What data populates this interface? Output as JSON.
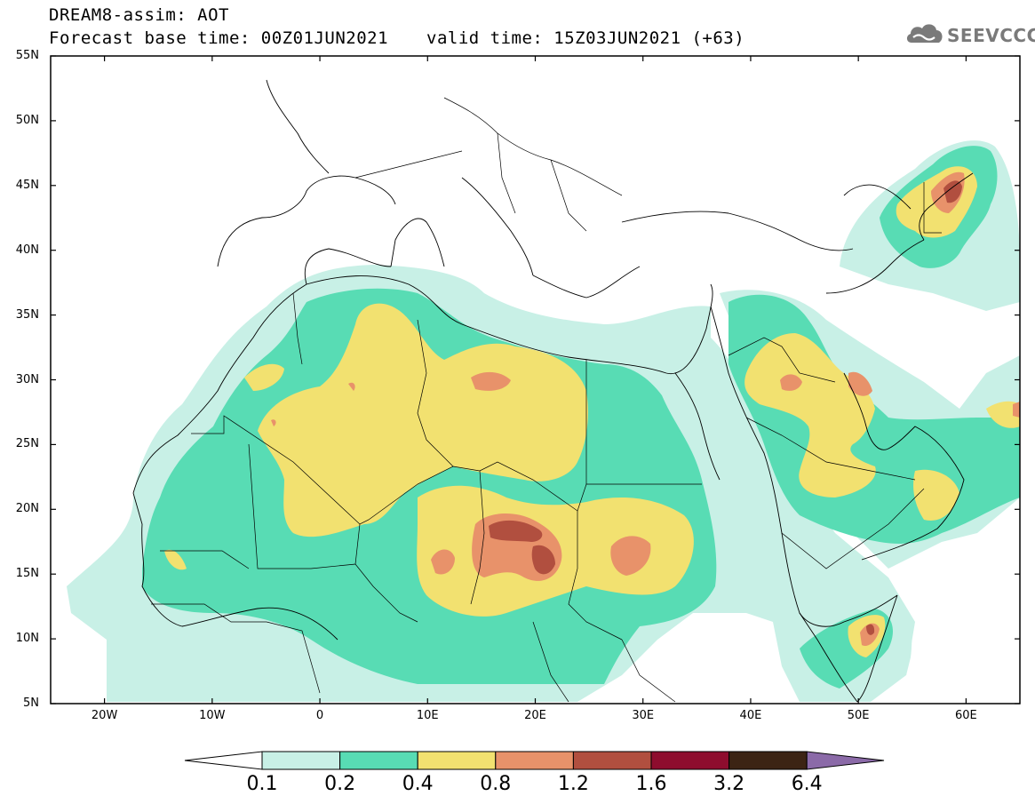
{
  "header": {
    "title": "DREAM8-assim: AOT",
    "base_time": "Forecast base time: 00Z01JUN2021",
    "valid_time": "valid time: 15Z03JUN2021 (+63)",
    "logo_text": "SEEVCCC"
  },
  "map": {
    "lon_range": [
      -25,
      65
    ],
    "lat_range": [
      5,
      55
    ],
    "lat_labels": [
      "55N",
      "50N",
      "45N",
      "40N",
      "35N",
      "30N",
      "25N",
      "20N",
      "15N",
      "10N",
      "5N"
    ],
    "lon_labels": [
      "20W",
      "10W",
      "0",
      "10E",
      "20E",
      "30E",
      "40E",
      "50E",
      "60E"
    ]
  },
  "colorbar": {
    "labels": [
      "0.1",
      "0.2",
      "0.4",
      "0.8",
      "1.2",
      "1.6",
      "3.2",
      "6.4"
    ],
    "colors": [
      "#ffffff",
      "#c8f0e6",
      "#58dcb4",
      "#f2e170",
      "#e8926a",
      "#b14f3f",
      "#8e0d2e",
      "#3c2414",
      "#8b6aa8"
    ]
  }
}
